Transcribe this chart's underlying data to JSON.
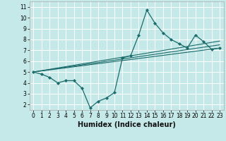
{
  "xlabel": "Humidex (Indice chaleur)",
  "bg_color": "#c5e8e8",
  "grid_color": "#ffffff",
  "line_color": "#1a6b6b",
  "xlim": [
    -0.5,
    23.5
  ],
  "ylim": [
    1.5,
    11.5
  ],
  "xticks": [
    0,
    1,
    2,
    3,
    4,
    5,
    6,
    7,
    8,
    9,
    10,
    11,
    12,
    13,
    14,
    15,
    16,
    17,
    18,
    19,
    20,
    21,
    22,
    23
  ],
  "yticks": [
    2,
    3,
    4,
    5,
    6,
    7,
    8,
    9,
    10,
    11
  ],
  "main_x": [
    0,
    1,
    2,
    3,
    4,
    5,
    6,
    7,
    8,
    9,
    10,
    11,
    12,
    13,
    14,
    15,
    16,
    17,
    18,
    19,
    20,
    21,
    22,
    23
  ],
  "main_y": [
    5.0,
    4.8,
    4.5,
    4.0,
    4.2,
    4.2,
    3.5,
    1.7,
    2.3,
    2.6,
    3.1,
    6.3,
    6.5,
    8.4,
    10.7,
    9.5,
    8.6,
    8.0,
    7.6,
    7.2,
    8.4,
    7.8,
    7.1,
    7.2
  ],
  "trend_lines": [
    {
      "x": [
        0,
        23
      ],
      "y": [
        5.0,
        7.2
      ]
    },
    {
      "x": [
        0,
        23
      ],
      "y": [
        5.0,
        7.5
      ]
    },
    {
      "x": [
        0,
        23
      ],
      "y": [
        5.0,
        7.85
      ]
    }
  ]
}
